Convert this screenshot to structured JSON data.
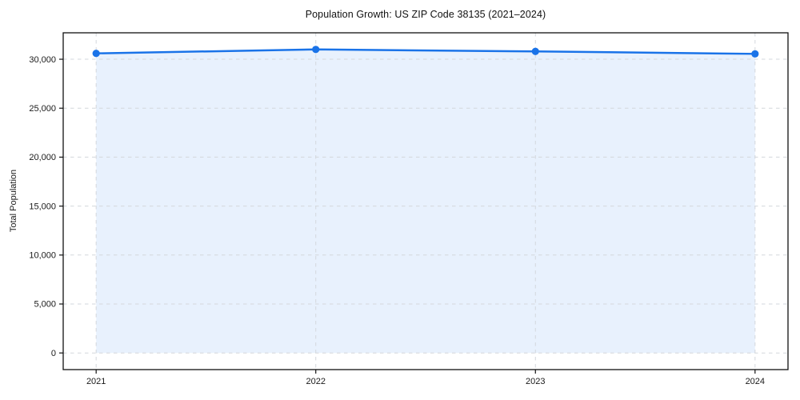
{
  "chart_data": {
    "type": "area",
    "title": "Population Growth: US ZIP Code 38135 (2021–2024)",
    "xlabel": "",
    "ylabel": "Total Population",
    "categories": [
      "2021",
      "2022",
      "2023",
      "2024"
    ],
    "x": [
      2021,
      2022,
      2023,
      2024
    ],
    "values": [
      30600,
      31000,
      30800,
      30550
    ],
    "series": [
      {
        "name": "Total Population",
        "values": [
          30600,
          31000,
          30800,
          30550
        ]
      }
    ],
    "y_ticks": [
      0,
      5000,
      10000,
      15000,
      20000,
      25000,
      30000
    ],
    "y_tick_labels": [
      "0",
      "5,000",
      "10,000",
      "15,000",
      "20,000",
      "25,000",
      "30,000"
    ],
    "ylim": [
      -1700,
      32700
    ],
    "xlim": [
      2020.85,
      2024.15
    ],
    "grid": true,
    "legend": "none",
    "fill_baseline": 0,
    "colors": {
      "line": "#1a73e8",
      "marker": "#1a73e8",
      "fill": "rgba(26,115,232,0.10)",
      "grid": "#d3d7dc",
      "spine": "#111111",
      "text": "#1a1a1a",
      "background": "#ffffff"
    }
  }
}
